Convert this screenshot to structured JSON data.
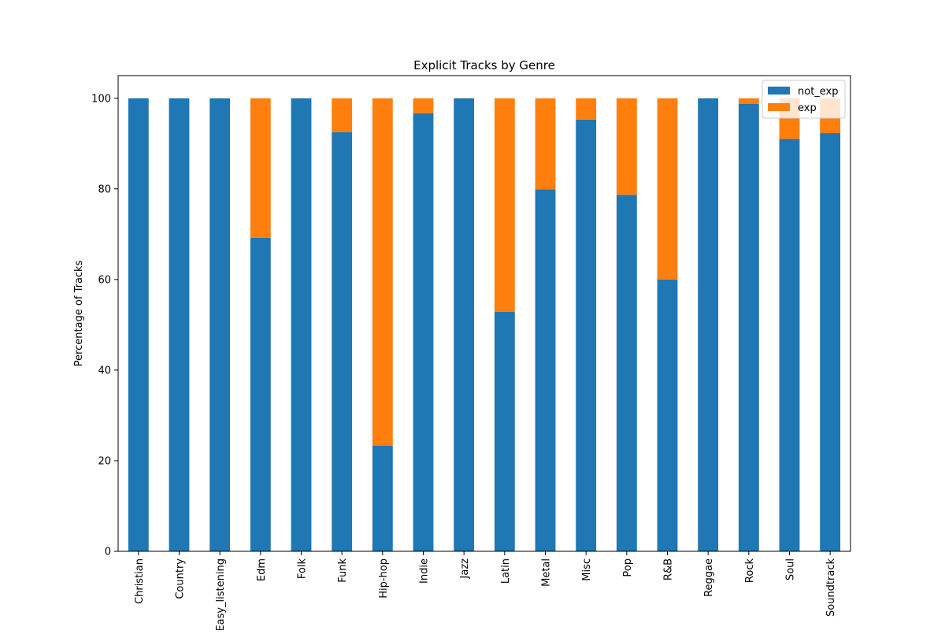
{
  "chart_data": {
    "type": "bar",
    "stacked": true,
    "title": "Explicit Tracks by Genre",
    "xlabel": "",
    "ylabel": "Percentage of Tracks",
    "ylim": [
      0,
      105
    ],
    "yticks": [
      0,
      20,
      40,
      60,
      80,
      100
    ],
    "grid": false,
    "legend_position": "top-right",
    "categories": [
      "Christian",
      "Country",
      "Easy_listening",
      "Edm",
      "Folk",
      "Funk",
      "Hip-hop",
      "Indie",
      "Jazz",
      "Latin",
      "Metal",
      "Misc",
      "Pop",
      "R&B",
      "Reggae",
      "Rock",
      "Soul",
      "Soundtrack"
    ],
    "series": [
      {
        "name": "not_exp",
        "color": "#1f77b4",
        "values": [
          100,
          100,
          100,
          69.2,
          100,
          92.5,
          23.3,
          96.7,
          100,
          52.9,
          79.9,
          95.3,
          78.7,
          60.0,
          100,
          98.8,
          91.0,
          92.3
        ]
      },
      {
        "name": "exp",
        "color": "#ff7f0e",
        "values": [
          0,
          0,
          0,
          30.8,
          0,
          7.5,
          76.7,
          3.3,
          0,
          47.1,
          20.1,
          4.7,
          21.3,
          40.0,
          0,
          1.2,
          9.0,
          7.7
        ]
      }
    ]
  }
}
